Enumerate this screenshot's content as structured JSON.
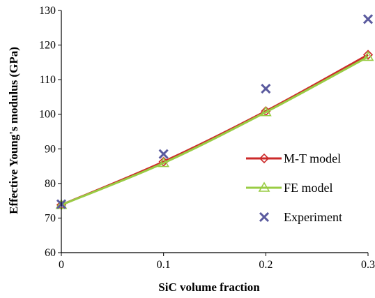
{
  "chart_data": {
    "type": "line",
    "xlabel": "SiC volume fraction",
    "ylabel": "Effective Young's modulus (GPa)",
    "xlim": [
      0,
      0.3
    ],
    "ylim": [
      60,
      130
    ],
    "x_ticks": [
      "0",
      "0.1",
      "0.2",
      "0.3"
    ],
    "y_ticks": [
      "60",
      "70",
      "80",
      "90",
      "100",
      "110",
      "120",
      "130"
    ],
    "x": [
      0,
      0.1,
      0.2,
      0.3
    ],
    "grid": false,
    "legend_position": "right",
    "series": [
      {
        "name": "M-T model",
        "values": [
          73.8,
          86.3,
          100.9,
          117.2
        ],
        "color": "#cc2a2a",
        "marker": "diamond",
        "line": true
      },
      {
        "name": "FE model",
        "values": [
          73.8,
          85.9,
          100.6,
          116.6
        ],
        "color": "#99cc44",
        "marker": "triangle",
        "line": true
      },
      {
        "name": "Experiment",
        "values": [
          74.0,
          88.5,
          107.4,
          127.5
        ],
        "color": "#5a5a9e",
        "marker": "cross",
        "line": false
      }
    ]
  }
}
